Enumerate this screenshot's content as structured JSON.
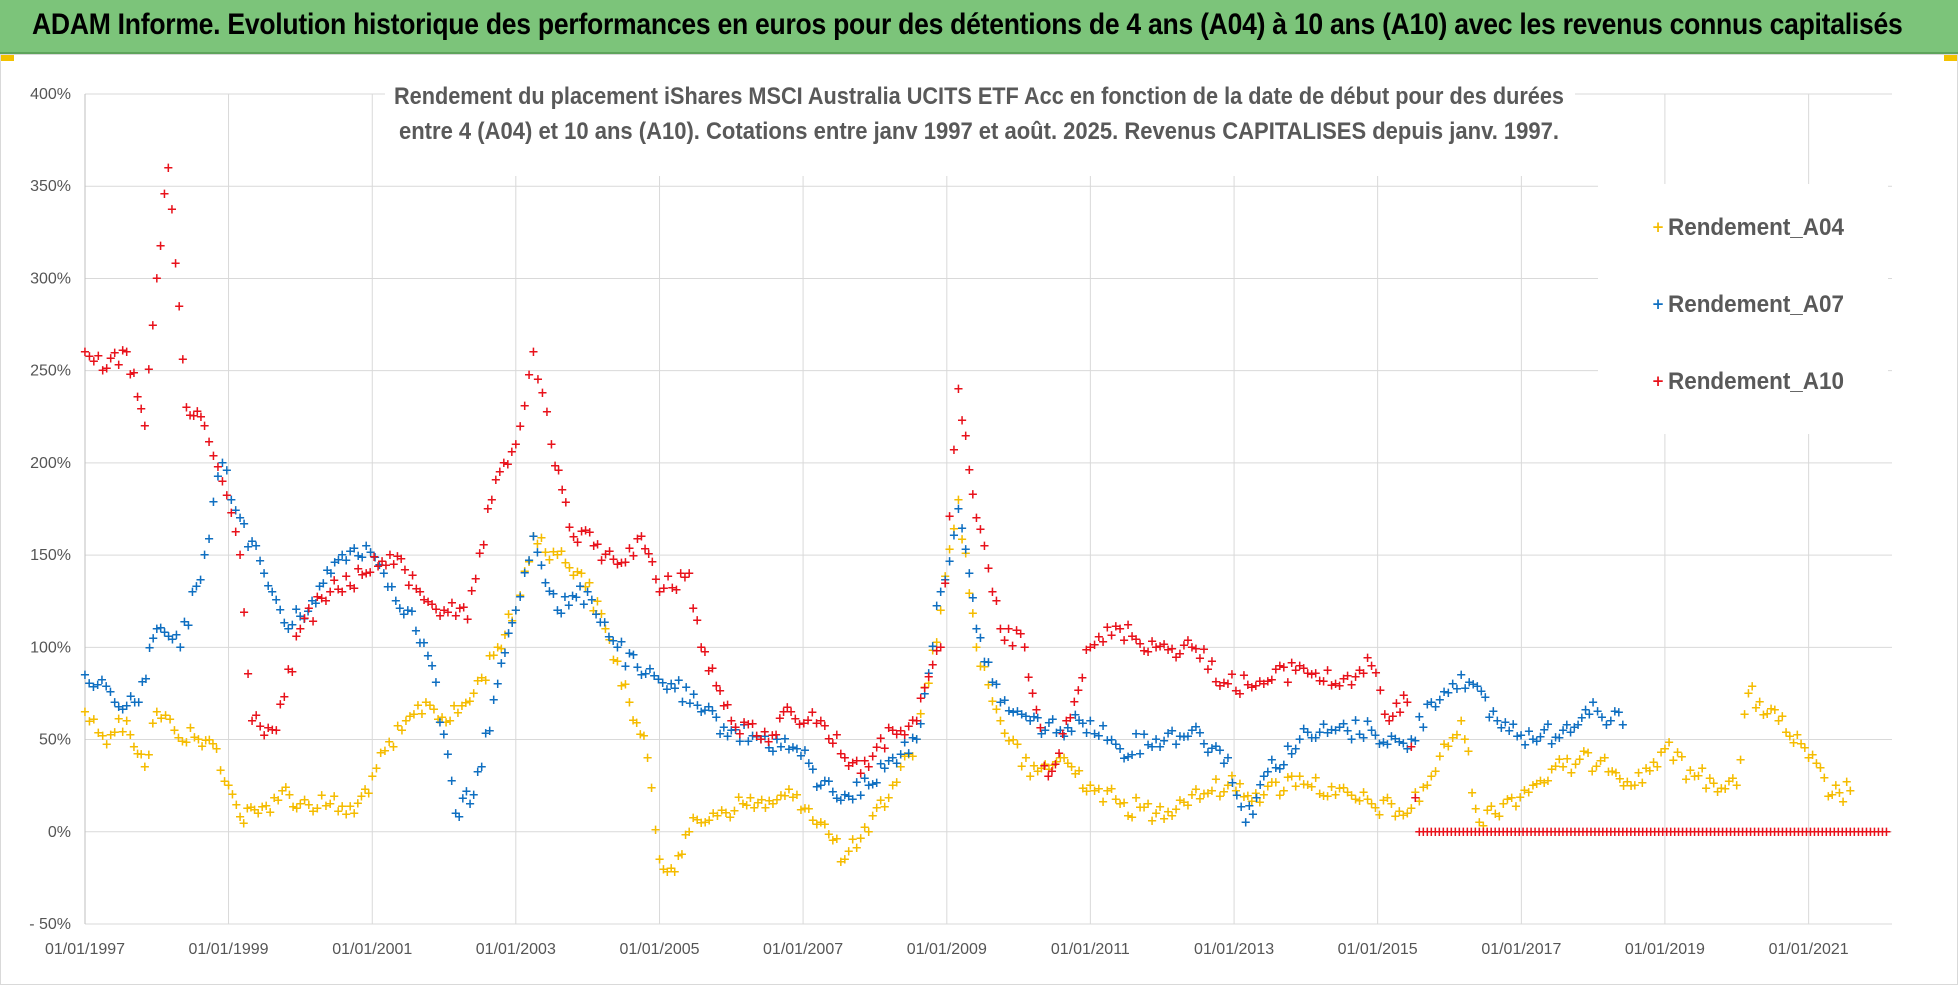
{
  "banner": {
    "title": "ADAM Informe. Evolution historique des performances en euros pour des détentions de 4 ans (A04) à 10 ans (A10) avec les revenus connus capitalisés"
  },
  "colors": {
    "banner_bg": "#7cc47a",
    "a04": "#f5bc00",
    "a07": "#0f6fc1",
    "a10": "#e8121b",
    "grid": "#d9d9d9"
  },
  "chart_data": {
    "type": "scatter",
    "title": [
      "Rendement du placement iShares MSCI Australia UCITS ETF Acc en fonction de la date de début pour des durées",
      "entre 4 (A04) et 10 ans (A10).  Cotations entre janv 1997 et août. 2025. Revenus CAPITALISES depuis janv. 1997."
    ],
    "xlabel": "",
    "ylabel": "",
    "x_range": [
      "1997-01-01",
      "2022-03-01"
    ],
    "ylim": [
      -50,
      400
    ],
    "y_ticks": [
      -50,
      0,
      50,
      100,
      150,
      200,
      250,
      300,
      350,
      400
    ],
    "y_tick_labels": [
      "- 50%",
      "0%",
      "50%",
      "100%",
      "150%",
      "200%",
      "250%",
      "300%",
      "350%",
      "400%"
    ],
    "x_ticks": [
      "1997-01-01",
      "1999-01-01",
      "2001-01-01",
      "2003-01-01",
      "2005-01-01",
      "2007-01-01",
      "2009-01-01",
      "2011-01-01",
      "2013-01-01",
      "2015-01-01",
      "2017-01-01",
      "2019-01-01",
      "2021-01-01"
    ],
    "x_tick_labels": [
      "01/01/1997",
      "01/01/1999",
      "01/01/2001",
      "01/01/2003",
      "01/01/2005",
      "01/01/2007",
      "01/01/2009",
      "01/01/2011",
      "01/01/2013",
      "01/01/2015",
      "01/01/2017",
      "01/01/2019",
      "01/01/2021"
    ],
    "grid": true,
    "legend_position": "top-right",
    "marker": "+",
    "series": [
      {
        "name": "Rendement_A04",
        "color": "#f5bc00",
        "points": [
          [
            "1997-01-01",
            65
          ],
          [
            "1997-04-01",
            52
          ],
          [
            "1997-08-01",
            60
          ],
          [
            "1997-11-01",
            35
          ],
          [
            "1998-01-01",
            65
          ],
          [
            "1998-04-01",
            55
          ],
          [
            "1998-08-01",
            50
          ],
          [
            "1998-11-01",
            45
          ],
          [
            "1999-01-01",
            25
          ],
          [
            "1999-03-01",
            8
          ],
          [
            "1999-06-01",
            10
          ],
          [
            "1999-10-01",
            22
          ],
          [
            "2000-01-01",
            15
          ],
          [
            "2000-06-01",
            15
          ],
          [
            "2000-10-01",
            10
          ],
          [
            "2001-01-01",
            30
          ],
          [
            "2001-06-01",
            55
          ],
          [
            "2001-10-01",
            70
          ],
          [
            "2002-02-01",
            60
          ],
          [
            "2002-06-01",
            75
          ],
          [
            "2002-10-01",
            100
          ],
          [
            "2003-01-01",
            120
          ],
          [
            "2003-04-01",
            160
          ],
          [
            "2003-08-01",
            150
          ],
          [
            "2003-12-01",
            140
          ],
          [
            "2004-04-01",
            110
          ],
          [
            "2004-08-01",
            70
          ],
          [
            "2004-11-01",
            40
          ],
          [
            "2005-01-01",
            -15
          ],
          [
            "2005-03-01",
            -20
          ],
          [
            "2005-06-01",
            0
          ],
          [
            "2005-10-01",
            10
          ],
          [
            "2006-03-01",
            15
          ],
          [
            "2006-08-01",
            15
          ],
          [
            "2006-12-01",
            20
          ],
          [
            "2007-04-01",
            5
          ],
          [
            "2007-08-01",
            -15
          ],
          [
            "2007-12-01",
            0
          ],
          [
            "2008-04-01",
            25
          ],
          [
            "2008-08-01",
            50
          ],
          [
            "2008-12-01",
            120
          ],
          [
            "2009-03-01",
            180
          ],
          [
            "2009-06-01",
            100
          ],
          [
            "2009-10-01",
            60
          ],
          [
            "2010-03-01",
            30
          ],
          [
            "2010-08-01",
            40
          ],
          [
            "2011-01-01",
            25
          ],
          [
            "2011-06-01",
            15
          ],
          [
            "2011-12-01",
            10
          ],
          [
            "2012-06-01",
            20
          ],
          [
            "2012-12-01",
            25
          ],
          [
            "2013-06-01",
            20
          ],
          [
            "2013-12-01",
            30
          ],
          [
            "2014-06-01",
            20
          ],
          [
            "2014-12-01",
            15
          ],
          [
            "2015-06-01",
            10
          ],
          [
            "2015-10-01",
            30
          ],
          [
            "2016-03-01",
            60
          ],
          [
            "2016-06-01",
            5
          ],
          [
            "2016-10-01",
            15
          ],
          [
            "2017-03-01",
            25
          ],
          [
            "2017-08-01",
            35
          ],
          [
            "2018-03-01",
            40
          ],
          [
            "2018-08-01",
            25
          ],
          [
            "2019-01-01",
            45
          ],
          [
            "2019-06-01",
            30
          ],
          [
            "2020-01-01",
            25
          ],
          [
            "2020-03-01",
            75
          ],
          [
            "2020-08-01",
            60
          ],
          [
            "2021-01-01",
            40
          ],
          [
            "2021-05-01",
            20
          ],
          [
            "2021-08-01",
            22
          ]
        ]
      },
      {
        "name": "Rendement_A07",
        "color": "#0f6fc1",
        "points": [
          [
            "1997-01-01",
            85
          ],
          [
            "1997-06-01",
            70
          ],
          [
            "1997-10-01",
            70
          ],
          [
            "1998-01-01",
            110
          ],
          [
            "1998-05-01",
            100
          ],
          [
            "1998-09-01",
            150
          ],
          [
            "1998-12-01",
            200
          ],
          [
            "1999-03-01",
            170
          ],
          [
            "1999-07-01",
            140
          ],
          [
            "1999-11-01",
            110
          ],
          [
            "2000-03-01",
            125
          ],
          [
            "2000-08-01",
            150
          ],
          [
            "2000-12-01",
            155
          ],
          [
            "2001-03-01",
            140
          ],
          [
            "2001-07-01",
            120
          ],
          [
            "2001-11-01",
            90
          ],
          [
            "2002-03-01",
            10
          ],
          [
            "2002-06-01",
            20
          ],
          [
            "2002-10-01",
            80
          ],
          [
            "2003-01-01",
            120
          ],
          [
            "2003-04-01",
            160
          ],
          [
            "2003-08-01",
            120
          ],
          [
            "2004-01-01",
            130
          ],
          [
            "2004-06-01",
            100
          ],
          [
            "2004-10-01",
            85
          ],
          [
            "2005-03-01",
            80
          ],
          [
            "2005-08-01",
            65
          ],
          [
            "2006-01-01",
            55
          ],
          [
            "2006-06-01",
            50
          ],
          [
            "2006-12-01",
            45
          ],
          [
            "2007-04-01",
            25
          ],
          [
            "2007-08-01",
            20
          ],
          [
            "2007-12-01",
            25
          ],
          [
            "2008-04-01",
            40
          ],
          [
            "2008-08-01",
            50
          ],
          [
            "2008-12-01",
            130
          ],
          [
            "2009-03-01",
            175
          ],
          [
            "2009-06-01",
            110
          ],
          [
            "2009-10-01",
            70
          ],
          [
            "2010-03-01",
            60
          ],
          [
            "2010-08-01",
            55
          ],
          [
            "2011-01-01",
            60
          ],
          [
            "2011-06-01",
            45
          ],
          [
            "2011-12-01",
            50
          ],
          [
            "2012-06-01",
            55
          ],
          [
            "2012-12-01",
            40
          ],
          [
            "2013-03-01",
            5
          ],
          [
            "2013-06-01",
            30
          ],
          [
            "2013-12-01",
            50
          ],
          [
            "2014-06-01",
            55
          ],
          [
            "2014-12-01",
            55
          ],
          [
            "2015-06-01",
            45
          ],
          [
            "2015-10-01",
            70
          ],
          [
            "2016-03-01",
            85
          ],
          [
            "2016-09-01",
            60
          ],
          [
            "2017-03-01",
            50
          ],
          [
            "2017-08-01",
            55
          ],
          [
            "2018-01-01",
            70
          ],
          [
            "2018-04-01",
            60
          ],
          [
            "2018-06-01",
            58
          ]
        ]
      },
      {
        "name": "Rendement_A10",
        "color": "#e8121b",
        "points": [
          [
            "1997-01-01",
            260
          ],
          [
            "1997-04-01",
            250
          ],
          [
            "1997-08-01",
            260
          ],
          [
            "1997-11-01",
            220
          ],
          [
            "1998-01-01",
            300
          ],
          [
            "1998-03-01",
            360
          ],
          [
            "1998-06-01",
            230
          ],
          [
            "1998-09-01",
            220
          ],
          [
            "1998-12-01",
            190
          ],
          [
            "1999-03-01",
            150
          ],
          [
            "1999-05-01",
            60
          ],
          [
            "1999-09-01",
            55
          ],
          [
            "2000-01-01",
            110
          ],
          [
            "2000-06-01",
            130
          ],
          [
            "2000-12-01",
            140
          ],
          [
            "2001-04-01",
            150
          ],
          [
            "2001-09-01",
            130
          ],
          [
            "2002-01-01",
            120
          ],
          [
            "2002-05-01",
            115
          ],
          [
            "2002-09-01",
            180
          ],
          [
            "2003-01-01",
            210
          ],
          [
            "2003-04-01",
            260
          ],
          [
            "2003-07-01",
            210
          ],
          [
            "2003-10-01",
            165
          ],
          [
            "2004-02-01",
            155
          ],
          [
            "2004-06-01",
            145
          ],
          [
            "2004-10-01",
            160
          ],
          [
            "2005-01-01",
            130
          ],
          [
            "2005-06-01",
            140
          ],
          [
            "2005-08-01",
            100
          ],
          [
            "2006-01-01",
            60
          ],
          [
            "2006-06-01",
            50
          ],
          [
            "2006-11-01",
            65
          ],
          [
            "2007-04-01",
            60
          ],
          [
            "2007-08-01",
            40
          ],
          [
            "2007-12-01",
            35
          ],
          [
            "2008-04-01",
            55
          ],
          [
            "2008-08-01",
            60
          ],
          [
            "2008-12-01",
            100
          ],
          [
            "2009-03-01",
            240
          ],
          [
            "2009-06-01",
            170
          ],
          [
            "2009-10-01",
            110
          ],
          [
            "2010-02-01",
            100
          ],
          [
            "2010-06-01",
            30
          ],
          [
            "2010-09-01",
            60
          ],
          [
            "2011-01-01",
            100
          ],
          [
            "2011-06-01",
            110
          ],
          [
            "2011-12-01",
            100
          ],
          [
            "2012-06-01",
            100
          ],
          [
            "2012-12-01",
            80
          ],
          [
            "2013-06-01",
            80
          ],
          [
            "2013-12-01",
            90
          ],
          [
            "2014-06-01",
            80
          ],
          [
            "2014-12-01",
            90
          ],
          [
            "2015-03-01",
            60
          ],
          [
            "2015-06-01",
            70
          ],
          [
            "2015-08-01",
            0
          ],
          [
            "2016-06-01",
            0
          ],
          [
            "2017-06-01",
            0
          ],
          [
            "2018-06-01",
            0
          ],
          [
            "2019-06-01",
            0
          ],
          [
            "2020-06-01",
            0
          ],
          [
            "2021-06-01",
            0
          ],
          [
            "2022-02-01",
            0
          ]
        ]
      }
    ]
  }
}
